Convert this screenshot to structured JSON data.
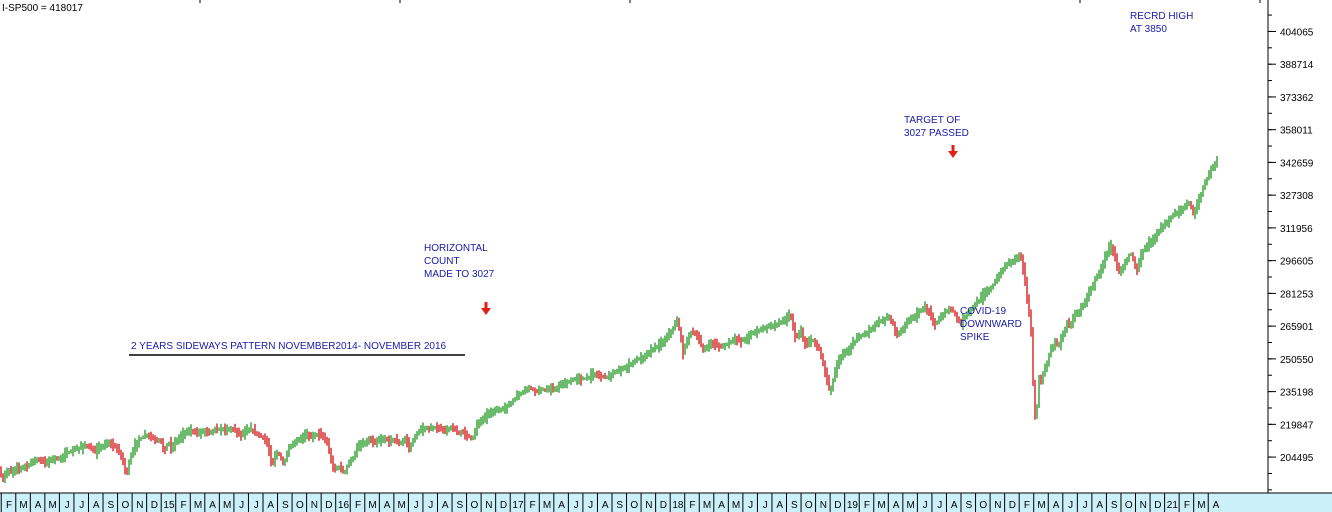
{
  "chart_data": {
    "type": "candlestick",
    "title": "I-SP500 = 418017",
    "colors": {
      "up": "#2e9e2e",
      "down": "#d42020",
      "annotation": "#1a1aa6",
      "arrow": "#e0201a",
      "axis_bg": "#ccf0fa"
    },
    "y_ticks": [
      404065,
      388714,
      373362,
      358011,
      342659,
      327308,
      311956,
      296605,
      281253,
      265901,
      250550,
      235198,
      219847,
      204495
    ],
    "ylim": [
      190000,
      416000
    ],
    "x_ticks": [
      "F",
      "M",
      "A",
      "M",
      "J",
      "J",
      "A",
      "S",
      "O",
      "N",
      "D",
      "15",
      "F",
      "M",
      "A",
      "M",
      "J",
      "J",
      "A",
      "S",
      "O",
      "N",
      "D",
      "16",
      "F",
      "M",
      "A",
      "M",
      "J",
      "J",
      "A",
      "S",
      "O",
      "N",
      "D",
      "17",
      "F",
      "M",
      "A",
      "J",
      "J",
      "A",
      "S",
      "O",
      "N",
      "D",
      "18",
      "F",
      "M",
      "A",
      "M",
      "J",
      "J",
      "A",
      "S",
      "O",
      "N",
      "D",
      "19",
      "F",
      "M",
      "A",
      "M",
      "J",
      "J",
      "A",
      "S",
      "O",
      "N",
      "D",
      "F",
      "M",
      "A",
      "J",
      "J",
      "A",
      "S",
      "O",
      "N",
      "D",
      "21",
      "F",
      "M",
      "A"
    ],
    "price_path": [
      [
        0,
        199000
      ],
      [
        2,
        192000
      ],
      [
        4,
        196000
      ],
      [
        8,
        198000
      ],
      [
        12,
        197500
      ],
      [
        16,
        199500
      ],
      [
        20,
        199000
      ],
      [
        24,
        200500
      ],
      [
        28,
        200000
      ],
      [
        30,
        202000
      ],
      [
        34,
        203000
      ],
      [
        38,
        203500
      ],
      [
        42,
        202500
      ],
      [
        46,
        202000
      ],
      [
        50,
        203000
      ],
      [
        54,
        204500
      ],
      [
        58,
        203000
      ],
      [
        62,
        205000
      ],
      [
        66,
        206000
      ],
      [
        70,
        207000
      ],
      [
        74,
        208000
      ],
      [
        78,
        208500
      ],
      [
        82,
        209500
      ],
      [
        86,
        210000
      ],
      [
        90,
        209000
      ],
      [
        94,
        206500
      ],
      [
        98,
        208500
      ],
      [
        102,
        209500
      ],
      [
        106,
        210500
      ],
      [
        110,
        211000
      ],
      [
        114,
        209500
      ],
      [
        118,
        208000
      ],
      [
        122,
        204000
      ],
      [
        125,
        199000
      ],
      [
        127,
        197000
      ],
      [
        129,
        202000
      ],
      [
        132,
        207000
      ],
      [
        136,
        211000
      ],
      [
        140,
        213000
      ],
      [
        144,
        214500
      ],
      [
        148,
        215000
      ],
      [
        152,
        213500
      ],
      [
        156,
        212000
      ],
      [
        160,
        213000
      ],
      [
        162,
        210000
      ],
      [
        164,
        207000
      ],
      [
        166,
        209000
      ],
      [
        168,
        212000
      ],
      [
        170,
        210000
      ],
      [
        172,
        208000
      ],
      [
        174,
        211000
      ],
      [
        178,
        213000
      ],
      [
        182,
        215000
      ],
      [
        186,
        216000
      ],
      [
        190,
        217000
      ],
      [
        194,
        216500
      ],
      [
        198,
        215500
      ],
      [
        202,
        216500
      ],
      [
        206,
        217000
      ],
      [
        210,
        216000
      ],
      [
        214,
        217500
      ],
      [
        218,
        217000
      ],
      [
        222,
        218000
      ],
      [
        226,
        217000
      ],
      [
        230,
        218000
      ],
      [
        234,
        217500
      ],
      [
        238,
        216000
      ],
      [
        242,
        215000
      ],
      [
        246,
        216500
      ],
      [
        250,
        217500
      ],
      [
        254,
        216500
      ],
      [
        258,
        215000
      ],
      [
        262,
        214000
      ],
      [
        266,
        212000
      ],
      [
        268,
        209500
      ],
      [
        270,
        205000
      ],
      [
        272,
        200500
      ],
      [
        274,
        203000
      ],
      [
        276,
        207000
      ],
      [
        278,
        206000
      ],
      [
        280,
        205000
      ],
      [
        282,
        202500
      ],
      [
        284,
        200500
      ],
      [
        286,
        205000
      ],
      [
        288,
        208000
      ],
      [
        292,
        210000
      ],
      [
        296,
        212000
      ],
      [
        300,
        213000
      ],
      [
        304,
        214500
      ],
      [
        308,
        215000
      ],
      [
        312,
        214000
      ],
      [
        316,
        215500
      ],
      [
        320,
        215000
      ],
      [
        324,
        213500
      ],
      [
        328,
        210000
      ],
      [
        330,
        205000
      ],
      [
        332,
        200500
      ],
      [
        334,
        198500
      ],
      [
        336,
        200000
      ],
      [
        338,
        199000
      ],
      [
        340,
        200500
      ],
      [
        342,
        198000
      ],
      [
        344,
        197000
      ],
      [
        346,
        199000
      ],
      [
        348,
        201500
      ],
      [
        350,
        202500
      ],
      [
        352,
        203500
      ],
      [
        354,
        205000
      ],
      [
        356,
        207500
      ],
      [
        358,
        209500
      ],
      [
        362,
        210500
      ],
      [
        366,
        211500
      ],
      [
        370,
        212500
      ],
      [
        374,
        211000
      ],
      [
        378,
        212000
      ],
      [
        382,
        212500
      ],
      [
        386,
        213000
      ],
      [
        390,
        212000
      ],
      [
        394,
        213000
      ],
      [
        398,
        211000
      ],
      [
        400,
        210500
      ],
      [
        402,
        212000
      ],
      [
        406,
        213000
      ],
      [
        408,
        210500
      ],
      [
        410,
        207500
      ],
      [
        412,
        212000
      ],
      [
        414,
        213500
      ],
      [
        418,
        216000
      ],
      [
        422,
        217500
      ],
      [
        426,
        218000
      ],
      [
        430,
        217500
      ],
      [
        434,
        218500
      ],
      [
        438,
        218000
      ],
      [
        442,
        217500
      ],
      [
        446,
        217000
      ],
      [
        450,
        218000
      ],
      [
        454,
        217500
      ],
      [
        458,
        216000
      ],
      [
        462,
        216500
      ],
      [
        466,
        215000
      ],
      [
        470,
        214000
      ],
      [
        472,
        212500
      ],
      [
        474,
        215500
      ],
      [
        477,
        219500
      ],
      [
        480,
        221500
      ],
      [
        483,
        222500
      ],
      [
        486,
        224000
      ],
      [
        490,
        225500
      ],
      [
        494,
        226000
      ],
      [
        498,
        226500
      ],
      [
        502,
        227000
      ],
      [
        506,
        228000
      ],
      [
        510,
        229500
      ],
      [
        514,
        231500
      ],
      [
        518,
        233500
      ],
      [
        522,
        235000
      ],
      [
        526,
        236500
      ],
      [
        530,
        237000
      ],
      [
        534,
        236000
      ],
      [
        538,
        235500
      ],
      [
        542,
        236500
      ],
      [
        546,
        235500
      ],
      [
        550,
        236500
      ],
      [
        554,
        236000
      ],
      [
        558,
        237500
      ],
      [
        562,
        238500
      ],
      [
        566,
        239000
      ],
      [
        570,
        240000
      ],
      [
        574,
        241000
      ],
      [
        578,
        241500
      ],
      [
        582,
        241000
      ],
      [
        586,
        241500
      ],
      [
        590,
        242500
      ],
      [
        594,
        243500
      ],
      [
        598,
        243000
      ],
      [
        602,
        242500
      ],
      [
        606,
        242000
      ],
      [
        610,
        243000
      ],
      [
        614,
        244000
      ],
      [
        618,
        244500
      ],
      [
        622,
        246000
      ],
      [
        626,
        246500
      ],
      [
        630,
        248000
      ],
      [
        634,
        249500
      ],
      [
        638,
        250500
      ],
      [
        642,
        251000
      ],
      [
        646,
        252500
      ],
      [
        650,
        254000
      ],
      [
        654,
        255500
      ],
      [
        658,
        257000
      ],
      [
        662,
        258000
      ],
      [
        666,
        260000
      ],
      [
        670,
        263000
      ],
      [
        674,
        265500
      ],
      [
        677,
        268000
      ],
      [
        679,
        265000
      ],
      [
        681,
        259000
      ],
      [
        683,
        253000
      ],
      [
        685,
        257000
      ],
      [
        688,
        261000
      ],
      [
        691,
        263000
      ],
      [
        694,
        262500
      ],
      [
        697,
        261000
      ],
      [
        700,
        258000
      ],
      [
        703,
        255000
      ],
      [
        706,
        255500
      ],
      [
        710,
        258000
      ],
      [
        714,
        257500
      ],
      [
        718,
        256500
      ],
      [
        722,
        256000
      ],
      [
        726,
        257500
      ],
      [
        730,
        258500
      ],
      [
        734,
        260000
      ],
      [
        738,
        259500
      ],
      [
        742,
        259000
      ],
      [
        746,
        260000
      ],
      [
        750,
        262000
      ],
      [
        754,
        263000
      ],
      [
        758,
        264000
      ],
      [
        762,
        264500
      ],
      [
        766,
        265500
      ],
      [
        770,
        266000
      ],
      [
        774,
        266500
      ],
      [
        778,
        267000
      ],
      [
        782,
        268000
      ],
      [
        786,
        269500
      ],
      [
        790,
        271000
      ],
      [
        792,
        268000
      ],
      [
        794,
        263000
      ],
      [
        796,
        260000
      ],
      [
        798,
        262500
      ],
      [
        801,
        263000
      ],
      [
        804,
        258000
      ],
      [
        807,
        257000
      ],
      [
        810,
        259000
      ],
      [
        813,
        259500
      ],
      [
        816,
        256000
      ],
      [
        819,
        255000
      ],
      [
        822,
        250000
      ],
      [
        824,
        247000
      ],
      [
        826,
        243000
      ],
      [
        828,
        238000
      ],
      [
        830,
        235500
      ],
      [
        832,
        238000
      ],
      [
        834,
        243000
      ],
      [
        837,
        248000
      ],
      [
        840,
        251000
      ],
      [
        844,
        253000
      ],
      [
        848,
        255000
      ],
      [
        852,
        257000
      ],
      [
        856,
        259500
      ],
      [
        860,
        261000
      ],
      [
        864,
        262500
      ],
      [
        868,
        263500
      ],
      [
        872,
        265000
      ],
      [
        876,
        267000
      ],
      [
        880,
        268000
      ],
      [
        884,
        269000
      ],
      [
        888,
        270000
      ],
      [
        890,
        269500
      ],
      [
        892,
        268000
      ],
      [
        894,
        266000
      ],
      [
        896,
        262500
      ],
      [
        898,
        261000
      ],
      [
        900,
        263500
      ],
      [
        904,
        266000
      ],
      [
        908,
        268500
      ],
      [
        912,
        270000
      ],
      [
        916,
        271000
      ],
      [
        920,
        273000
      ],
      [
        924,
        274500
      ],
      [
        928,
        273500
      ],
      [
        932,
        269000
      ],
      [
        935,
        267000
      ],
      [
        938,
        268500
      ],
      [
        942,
        270500
      ],
      [
        946,
        273000
      ],
      [
        950,
        274000
      ],
      [
        954,
        272500
      ],
      [
        958,
        268500
      ],
      [
        961,
        267000
      ],
      [
        964,
        270000
      ],
      [
        968,
        272500
      ],
      [
        972,
        274500
      ],
      [
        976,
        276500
      ],
      [
        980,
        278500
      ],
      [
        984,
        281000
      ],
      [
        988,
        282500
      ],
      [
        992,
        284500
      ],
      [
        996,
        287500
      ],
      [
        1000,
        290500
      ],
      [
        1004,
        293500
      ],
      [
        1008,
        295500
      ],
      [
        1012,
        296500
      ],
      [
        1015,
        298000
      ],
      [
        1018,
        299000
      ],
      [
        1021,
        298500
      ],
      [
        1022,
        296000
      ],
      [
        1024,
        289000
      ],
      [
        1026,
        283500
      ],
      [
        1028,
        276000
      ],
      [
        1030,
        268500
      ],
      [
        1031,
        263000
      ],
      [
        1032,
        252000
      ],
      [
        1033,
        239000
      ],
      [
        1034,
        227500
      ],
      [
        1035,
        223000
      ],
      [
        1036,
        221500
      ],
      [
        1037,
        228500
      ],
      [
        1038,
        236500
      ],
      [
        1039,
        241500
      ],
      [
        1040,
        237500
      ],
      [
        1042,
        242000
      ],
      [
        1044,
        246000
      ],
      [
        1046,
        245000
      ],
      [
        1048,
        251000
      ],
      [
        1050,
        254500
      ],
      [
        1052,
        255500
      ],
      [
        1054,
        257500
      ],
      [
        1056,
        258500
      ],
      [
        1058,
        256500
      ],
      [
        1060,
        258500
      ],
      [
        1062,
        261500
      ],
      [
        1064,
        263500
      ],
      [
        1066,
        266000
      ],
      [
        1068,
        267500
      ],
      [
        1070,
        265500
      ],
      [
        1072,
        268500
      ],
      [
        1074,
        270000
      ],
      [
        1076,
        273000
      ],
      [
        1078,
        272000
      ],
      [
        1080,
        273500
      ],
      [
        1082,
        275000
      ],
      [
        1084,
        276500
      ],
      [
        1086,
        278500
      ],
      [
        1088,
        280000
      ],
      [
        1090,
        282500
      ],
      [
        1092,
        284500
      ],
      [
        1094,
        286500
      ],
      [
        1096,
        288500
      ],
      [
        1098,
        290500
      ],
      [
        1100,
        292000
      ],
      [
        1102,
        294000
      ],
      [
        1104,
        296500
      ],
      [
        1106,
        299000
      ],
      [
        1108,
        301000
      ],
      [
        1110,
        304000
      ],
      [
        1112,
        302000
      ],
      [
        1114,
        299500
      ],
      [
        1116,
        296000
      ],
      [
        1118,
        293000
      ],
      [
        1120,
        291500
      ],
      [
        1122,
        293000
      ],
      [
        1124,
        295500
      ],
      [
        1126,
        296000
      ],
      [
        1128,
        298500
      ],
      [
        1130,
        300500
      ],
      [
        1132,
        298500
      ],
      [
        1134,
        296000
      ],
      [
        1136,
        292000
      ],
      [
        1138,
        294500
      ],
      [
        1140,
        298500
      ],
      [
        1144,
        302000
      ],
      [
        1148,
        304500
      ],
      [
        1152,
        306500
      ],
      [
        1156,
        309000
      ],
      [
        1160,
        311000
      ],
      [
        1164,
        313000
      ],
      [
        1168,
        315000
      ],
      [
        1172,
        317500
      ],
      [
        1176,
        319000
      ],
      [
        1180,
        320000
      ],
      [
        1184,
        321500
      ],
      [
        1188,
        324000
      ],
      [
        1190,
        323000
      ],
      [
        1192,
        319500
      ],
      [
        1194,
        318000
      ],
      [
        1196,
        321500
      ],
      [
        1198,
        324500
      ],
      [
        1200,
        326500
      ],
      [
        1202,
        329500
      ],
      [
        1204,
        331500
      ],
      [
        1206,
        334000
      ],
      [
        1208,
        336500
      ],
      [
        1210,
        339000
      ],
      [
        1212,
        340500
      ],
      [
        1214,
        341500
      ],
      [
        1216,
        342500
      ],
      [
        1218,
        343500
      ]
    ],
    "annotations": [
      {
        "lines": [
          "2 YEARS SIDEWAYS PATTERN NOVEMBER2014- NOVEMBER 2016"
        ],
        "underline": true
      },
      {
        "lines": [
          "HORIZONTAL",
          "COUNT",
          "MADE TO 3027"
        ],
        "arrow": true
      },
      {
        "lines": [
          "TARGET OF",
          "3027 PASSED"
        ],
        "arrow": true
      },
      {
        "lines": [
          "COVID-19",
          "DOWNWARD",
          "SPIKE"
        ]
      },
      {
        "lines": [
          "RECRD HIGH",
          "AT 3850"
        ]
      }
    ]
  }
}
